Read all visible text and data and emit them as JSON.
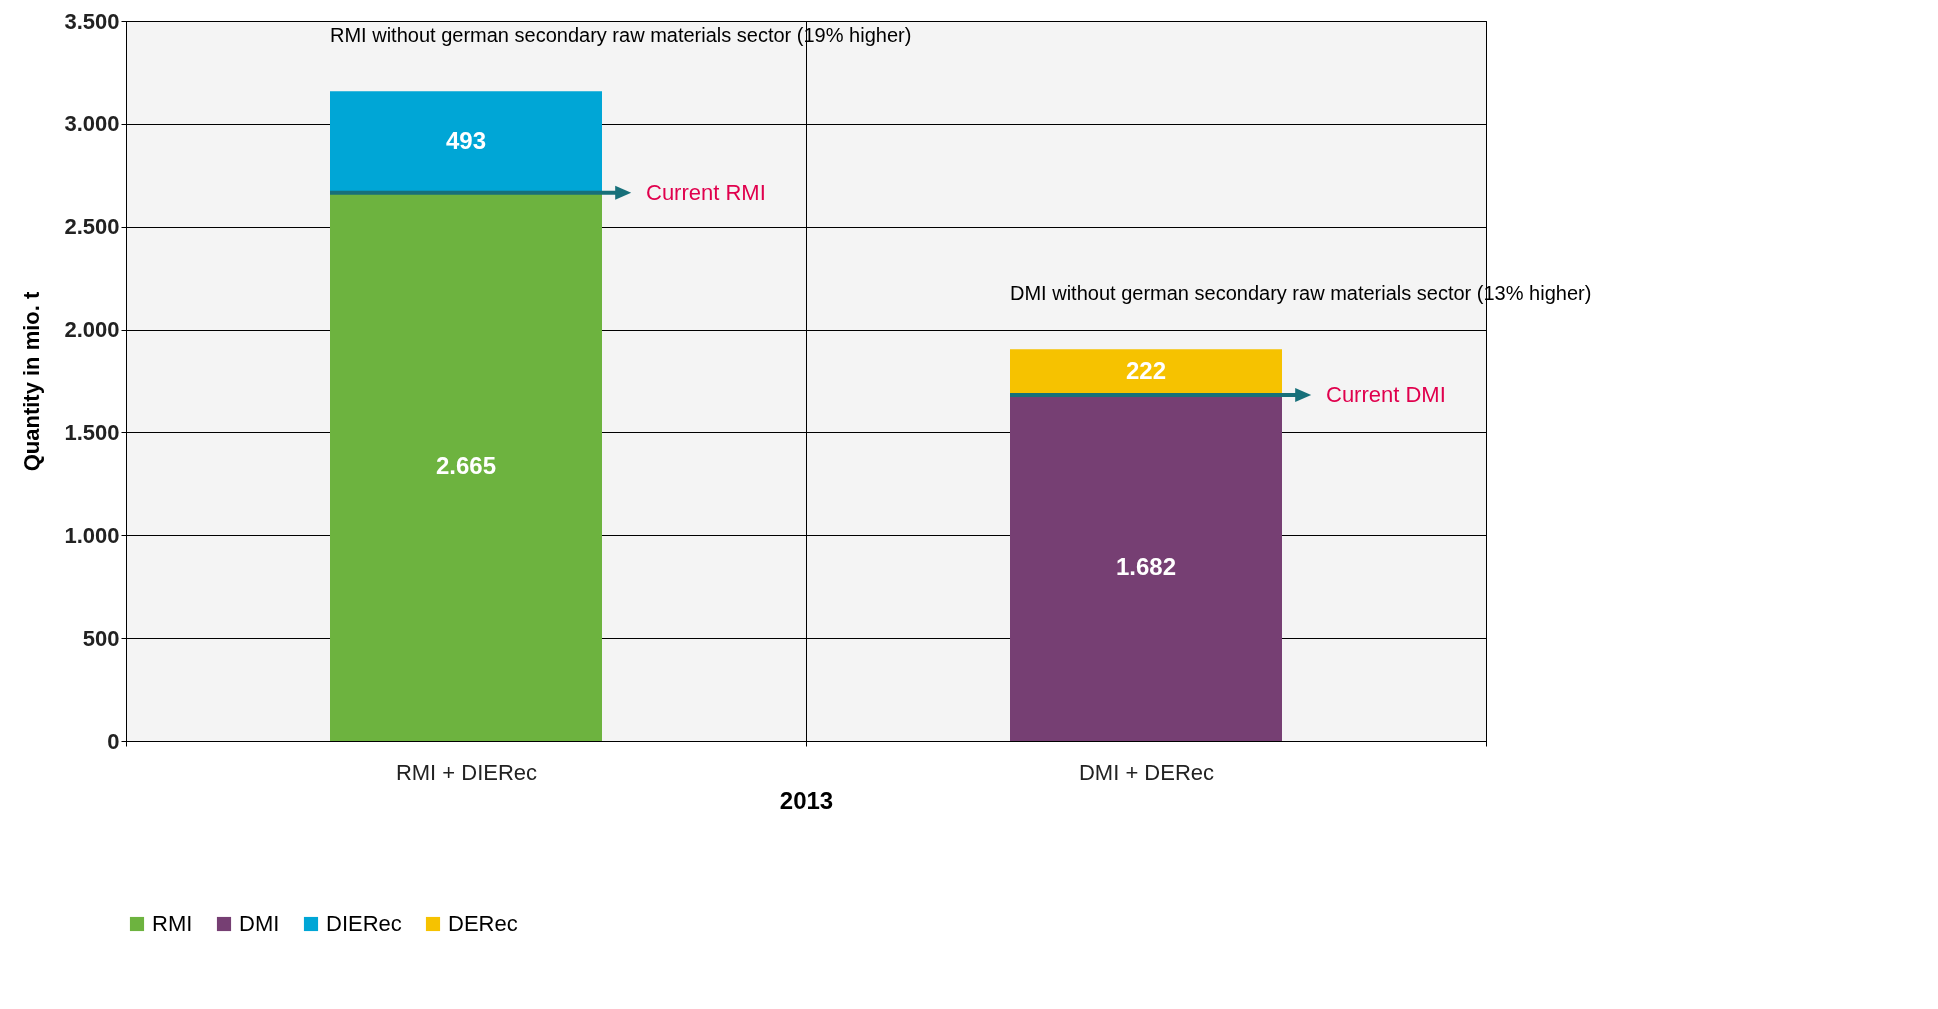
{
  "chart_data": {
    "type": "bar",
    "stacked": true,
    "categories": [
      "RMI + DIERec",
      "DMI + DERec"
    ],
    "xlabel": "2013",
    "ylabel": "Quantity in mio. t",
    "series": [
      {
        "name": "RMI",
        "color": "#6db33f",
        "values": [
          2665,
          null
        ],
        "value_labels": [
          "2.665",
          null
        ]
      },
      {
        "name": "DMI",
        "color": "#763f73",
        "values": [
          null,
          1682
        ],
        "value_labels": [
          null,
          "1.682"
        ]
      },
      {
        "name": "DIERec",
        "color": "#00a6d6",
        "values": [
          493,
          null
        ],
        "value_labels": [
          "493",
          null
        ]
      },
      {
        "name": "DERec",
        "color": "#f6c200",
        "values": [
          null,
          222
        ],
        "value_labels": [
          null,
          "222"
        ]
      }
    ],
    "ylim": [
      0,
      3500
    ],
    "yticks": [
      0,
      {
        "value": 500,
        "label": "500"
      },
      {
        "value": 1000,
        "label": "1.000"
      },
      {
        "value": 1500,
        "label": "1.500"
      },
      {
        "value": 2000,
        "label": "2.000"
      },
      {
        "value": 2500,
        "label": "2.500"
      },
      {
        "value": 3000,
        "label": "3.000"
      },
      {
        "value": 3500,
        "label": "3.500"
      }
    ],
    "grid": true,
    "legend": "bottom",
    "annotations": [
      "RMI without german secondary raw materials sector (19% higher)",
      "DMI without german secondary raw materials sector (13% higher)",
      "Current RMI",
      "Current DMI"
    ]
  }
}
